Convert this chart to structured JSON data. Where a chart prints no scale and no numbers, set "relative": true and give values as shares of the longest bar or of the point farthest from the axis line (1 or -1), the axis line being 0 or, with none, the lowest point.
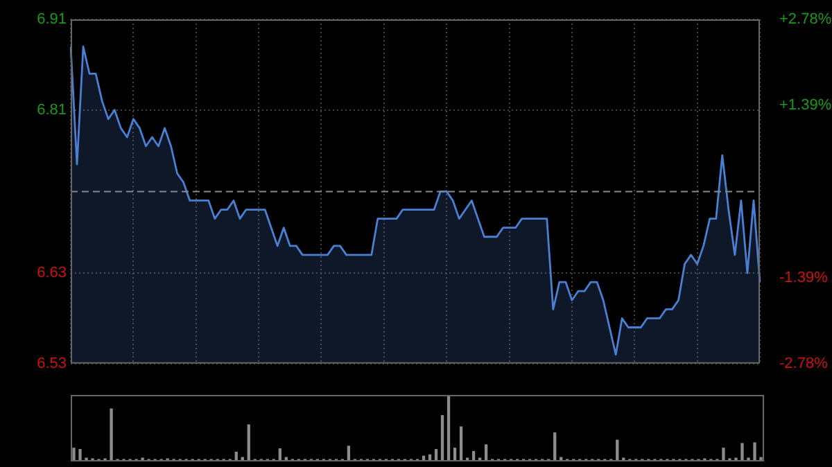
{
  "chart_data": [
    {
      "type": "area",
      "categories": [
        null,
        null,
        null,
        null,
        null,
        null,
        null,
        null,
        null,
        null,
        null,
        null,
        null,
        null,
        null,
        null,
        null,
        null,
        null,
        null,
        null,
        null,
        null,
        null,
        null,
        null,
        null,
        null,
        null,
        null,
        null,
        null,
        null,
        null,
        null,
        null,
        null,
        null,
        null,
        null,
        null,
        null,
        null,
        null,
        null,
        null,
        null,
        null,
        null,
        null,
        null,
        null,
        null,
        null,
        null,
        null,
        null,
        null,
        null,
        null,
        null,
        null,
        null,
        null,
        null,
        null,
        null,
        null,
        null,
        null,
        null,
        null,
        null,
        null,
        null,
        null,
        null,
        null,
        null,
        null,
        null,
        null,
        null,
        null,
        null,
        null,
        null,
        null,
        null,
        null,
        null,
        null,
        null,
        null,
        null,
        null,
        null,
        null,
        null,
        null,
        null,
        null,
        null,
        null,
        null,
        null,
        null,
        null,
        null,
        null,
        null
      ],
      "series": [
        {
          "color": "#4a80d4",
          "values": [
            6.88,
            6.75,
            6.88,
            6.85,
            6.85,
            6.82,
            6.8,
            6.81,
            6.79,
            6.78,
            6.8,
            6.79,
            6.77,
            6.78,
            6.77,
            6.79,
            6.77,
            6.74,
            6.73,
            6.71,
            6.71,
            6.71,
            6.71,
            6.69,
            6.7,
            6.7,
            6.71,
            6.69,
            6.7,
            6.7,
            6.7,
            6.7,
            6.68,
            6.66,
            6.68,
            6.66,
            6.66,
            6.65,
            6.65,
            6.65,
            6.65,
            6.65,
            6.66,
            6.66,
            6.65,
            6.65,
            6.65,
            6.65,
            6.65,
            6.69,
            6.69,
            6.69,
            6.69,
            6.7,
            6.7,
            6.7,
            6.7,
            6.7,
            6.7,
            6.72,
            6.72,
            6.71,
            6.69,
            6.7,
            6.71,
            6.69,
            6.67,
            6.67,
            6.67,
            6.68,
            6.68,
            6.68,
            6.69,
            6.69,
            6.69,
            6.69,
            6.69,
            6.59,
            6.62,
            6.62,
            6.6,
            6.61,
            6.61,
            6.62,
            6.62,
            6.6,
            6.57,
            6.54,
            6.58,
            6.57,
            6.57,
            6.57,
            6.58,
            6.58,
            6.58,
            6.59,
            6.59,
            6.6,
            6.64,
            6.65,
            6.64,
            6.66,
            6.69,
            6.69,
            6.76,
            6.7,
            6.65,
            6.71,
            6.63,
            6.71,
            6.62
          ]
        }
      ],
      "ylim": [
        6.53,
        6.91
      ],
      "yticks": [
        6.91,
        6.81,
        6.63,
        6.53
      ],
      "y2lim": [
        -2.78,
        2.78
      ],
      "y2ticks": [
        {
          "value": 2.78,
          "label": "+2.78%"
        },
        {
          "value": 1.39,
          "label": "+1.39%"
        },
        {
          "value": -1.39,
          "label": "-1.39%"
        },
        {
          "value": -2.78,
          "label": "-2.78%"
        }
      ],
      "ref_lines": [
        {
          "axis": "y",
          "value": 6.72,
          "line_style": "dashed"
        }
      ],
      "grid": true
    },
    {
      "type": "bar",
      "relative": true,
      "categories": [
        null,
        null,
        null,
        null,
        null,
        null,
        null,
        null,
        null,
        null,
        null,
        null,
        null,
        null,
        null,
        null,
        null,
        null,
        null,
        null,
        null,
        null,
        null,
        null,
        null,
        null,
        null,
        null,
        null,
        null,
        null,
        null,
        null,
        null,
        null,
        null,
        null,
        null,
        null,
        null,
        null,
        null,
        null,
        null,
        null,
        null,
        null,
        null,
        null,
        null,
        null,
        null,
        null,
        null,
        null,
        null,
        null,
        null,
        null,
        null,
        null,
        null,
        null,
        null,
        null,
        null,
        null,
        null,
        null,
        null,
        null,
        null,
        null,
        null,
        null,
        null,
        null,
        null,
        null,
        null,
        null,
        null,
        null,
        null,
        null,
        null,
        null,
        null,
        null,
        null,
        null,
        null,
        null,
        null,
        null,
        null,
        null,
        null,
        null,
        null,
        null,
        null,
        null,
        null,
        null,
        null,
        null,
        null,
        null,
        null,
        null
      ],
      "color": "#8c8c8c",
      "values": [
        0.2,
        0.18,
        0.05,
        0.04,
        0.03,
        0.04,
        0.79,
        0.03,
        0.03,
        0.03,
        0.03,
        0.05,
        0.03,
        0.03,
        0.03,
        0.04,
        0.03,
        0.03,
        0.03,
        0.03,
        0.03,
        0.03,
        0.03,
        0.03,
        0.03,
        0.03,
        0.14,
        0.06,
        0.55,
        0.03,
        0.03,
        0.03,
        0.03,
        0.19,
        0.06,
        0.03,
        0.03,
        0.03,
        0.03,
        0.03,
        0.03,
        0.03,
        0.03,
        0.03,
        0.23,
        0.03,
        0.03,
        0.03,
        0.03,
        0.03,
        0.03,
        0.03,
        0.03,
        0.03,
        0.03,
        0.03,
        0.08,
        0.1,
        0.18,
        0.69,
        1,
        0.2,
        0.52,
        0.05,
        0.15,
        0.05,
        0.25,
        0.03,
        0.03,
        0.03,
        0.03,
        0.03,
        0.03,
        0.03,
        0.03,
        0.03,
        0.03,
        0.43,
        0.06,
        0.03,
        0.03,
        0.03,
        0.03,
        0.03,
        0.03,
        0.03,
        0.03,
        0.32,
        0.05,
        0.03,
        0.03,
        0.03,
        0.03,
        0.03,
        0.03,
        0.03,
        0.03,
        0.03,
        0.03,
        0.03,
        0.03,
        0.04,
        0.03,
        0.03,
        0.2,
        0.04,
        0.05,
        0.27,
        0.05,
        0.28,
        0.06
      ]
    }
  ]
}
